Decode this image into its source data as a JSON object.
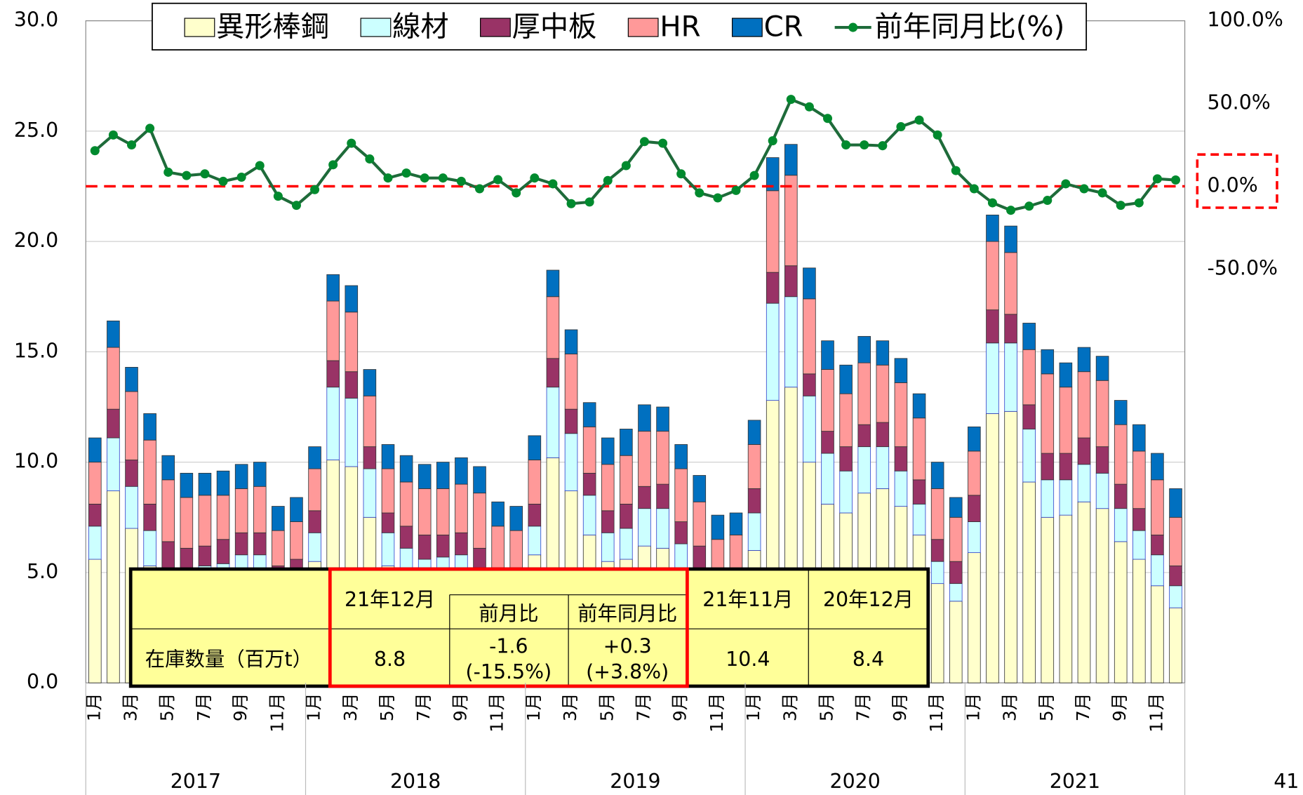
{
  "chart_data": {
    "type": "bar",
    "stacked": true,
    "categories": [
      "1月",
      null,
      "3月",
      null,
      "5月",
      null,
      "7月",
      null,
      "9月",
      null,
      "11月",
      null,
      "1月",
      null,
      "3月",
      null,
      "5月",
      null,
      "7月",
      null,
      "9月",
      null,
      "11月",
      null,
      "1月",
      null,
      "3月",
      null,
      "5月",
      null,
      "7月",
      null,
      "9月",
      null,
      "11月",
      null,
      "1月",
      null,
      "3月",
      null,
      "5月",
      null,
      "7月",
      null,
      "9月",
      null,
      "11月",
      null,
      "1月",
      null,
      "3月",
      null,
      "5月",
      null,
      "7月",
      null,
      "9月",
      null,
      "11月",
      null
    ],
    "years": [
      "2017",
      "2018",
      "2019",
      "2020",
      "2021"
    ],
    "ylim": [
      0,
      30
    ],
    "yticks": [
      {
        "value": 0,
        "label": "0.0"
      },
      {
        "value": 5,
        "label": "5.0"
      },
      {
        "value": 10,
        "label": "10.0"
      },
      {
        "value": 15,
        "label": "15.0"
      },
      {
        "value": 20,
        "label": "20.0"
      },
      {
        "value": 25,
        "label": "25.0"
      },
      {
        "value": 30,
        "label": "30.0"
      }
    ],
    "y2lim": [
      -300,
      100
    ],
    "y2ticks": [
      {
        "value": 100,
        "label": "100.0%"
      },
      {
        "value": 50,
        "label": "50.0%"
      },
      {
        "value": 0,
        "label": "0.0%"
      },
      {
        "value": -50,
        "label": "-50.0%"
      }
    ],
    "grid": true,
    "reference_line_y2": 0,
    "reference_line_color": "#ff0000",
    "series": [
      {
        "name": "異形棒鋼",
        "color": "#ffffcc",
        "values": [
          5.6,
          8.7,
          7.0,
          5.3,
          3.9,
          3.8,
          4.0,
          4.1,
          4.5,
          4.5,
          3.3,
          3.2,
          5.5,
          10.1,
          9.8,
          7.5,
          5.3,
          5.0,
          4.3,
          4.4,
          4.5,
          3.8,
          2.8,
          3.0,
          5.8,
          10.2,
          8.7,
          6.7,
          5.5,
          5.6,
          6.2,
          6.1,
          4.9,
          3.8,
          2.8,
          2.9,
          6.0,
          12.8,
          13.4,
          10.0,
          8.1,
          7.7,
          8.6,
          8.8,
          8.0,
          6.7,
          4.5,
          3.7,
          5.9,
          12.2,
          12.3,
          9.1,
          7.5,
          7.6,
          8.2,
          7.9,
          6.4,
          5.6,
          4.4,
          3.4
        ]
      },
      {
        "name": "線材",
        "color": "#ccffff",
        "values": [
          1.5,
          2.4,
          1.9,
          1.6,
          1.3,
          1.3,
          1.3,
          1.3,
          1.3,
          1.3,
          1.2,
          1.3,
          1.3,
          3.3,
          3.1,
          2.2,
          1.5,
          1.1,
          1.3,
          1.3,
          1.3,
          1.3,
          1.2,
          1.2,
          1.3,
          3.2,
          2.6,
          1.8,
          1.3,
          1.4,
          1.7,
          1.8,
          1.4,
          1.3,
          1.2,
          1.2,
          1.7,
          4.4,
          4.1,
          3.0,
          2.3,
          1.9,
          2.1,
          1.9,
          1.6,
          1.4,
          1.0,
          0.8,
          1.4,
          3.2,
          3.1,
          2.4,
          1.7,
          1.6,
          1.7,
          1.6,
          1.5,
          1.3,
          1.4,
          1.0
        ]
      },
      {
        "name": "厚中板",
        "color": "#993366",
        "values": [
          1.0,
          1.3,
          1.2,
          1.2,
          1.2,
          1.0,
          0.9,
          1.1,
          1.0,
          1.0,
          0.8,
          1.1,
          1.0,
          1.2,
          1.2,
          1.0,
          0.9,
          1.0,
          1.1,
          1.0,
          1.0,
          1.0,
          1.0,
          1.0,
          1.0,
          1.3,
          1.1,
          1.0,
          1.0,
          1.1,
          1.0,
          1.1,
          1.0,
          1.1,
          1.0,
          1.0,
          1.1,
          1.4,
          1.4,
          1.0,
          1.0,
          1.1,
          1.0,
          1.1,
          1.1,
          1.1,
          1.0,
          1.0,
          1.2,
          1.5,
          1.3,
          1.1,
          1.2,
          1.2,
          1.2,
          1.2,
          1.1,
          1.0,
          0.9,
          0.9
        ]
      },
      {
        "name": "HR",
        "color": "#ff9999",
        "values": [
          1.9,
          2.8,
          3.1,
          2.9,
          2.8,
          2.3,
          2.3,
          2.0,
          2.0,
          2.1,
          1.6,
          1.7,
          1.9,
          2.7,
          2.7,
          2.3,
          2.0,
          2.0,
          2.1,
          2.1,
          2.2,
          2.5,
          2.1,
          1.7,
          2.0,
          2.8,
          2.5,
          2.1,
          2.1,
          2.2,
          2.5,
          2.4,
          2.4,
          2.0,
          1.5,
          1.6,
          2.0,
          3.7,
          4.1,
          3.4,
          2.8,
          2.4,
          2.8,
          2.6,
          2.9,
          2.8,
          2.3,
          2.0,
          2.0,
          3.1,
          2.8,
          2.5,
          3.6,
          3.0,
          3.0,
          3.0,
          2.7,
          2.6,
          2.5,
          2.2
        ]
      },
      {
        "name": "CR",
        "color": "#0070c0",
        "values": [
          1.1,
          1.2,
          1.1,
          1.2,
          1.1,
          1.1,
          1.0,
          1.1,
          1.1,
          1.1,
          1.1,
          1.1,
          1.0,
          1.2,
          1.2,
          1.2,
          1.1,
          1.2,
          1.1,
          1.2,
          1.2,
          1.2,
          1.1,
          1.1,
          1.1,
          1.2,
          1.1,
          1.1,
          1.2,
          1.2,
          1.2,
          1.1,
          1.1,
          1.2,
          1.1,
          1.0,
          1.1,
          1.5,
          1.4,
          1.4,
          1.3,
          1.3,
          1.2,
          1.1,
          1.1,
          1.1,
          1.2,
          0.9,
          1.1,
          1.2,
          1.2,
          1.2,
          1.1,
          1.1,
          1.1,
          1.1,
          1.1,
          1.2,
          1.2,
          1.3
        ]
      },
      {
        "name": "前年同月比(%)",
        "color": "#1e6b3a",
        "marker_color": "#008a2e",
        "type": "line",
        "axis": "y2",
        "values": [
          21.5,
          31,
          25,
          35,
          8.5,
          6.5,
          7.5,
          3,
          5.5,
          12.5,
          -6,
          -11.5,
          -2,
          13,
          26,
          16.5,
          5,
          8,
          5,
          5,
          3,
          -1.5,
          4,
          -4,
          5,
          1.5,
          -10.5,
          -9.5,
          3.5,
          12.5,
          27,
          26,
          7.5,
          -4,
          -7,
          -2.5,
          6.5,
          27.5,
          52.5,
          48,
          41,
          25,
          25,
          24.5,
          36,
          40,
          31,
          9.5,
          -1.5,
          -10,
          -14.5,
          -12,
          -8.5,
          1.5,
          -1.5,
          -4,
          -11.5,
          -10,
          4.5,
          3.8
        ]
      }
    ]
  },
  "table": {
    "row_label": "在庫数量（百万t）",
    "header": [
      "21年12月",
      "前月比",
      "前年同月比",
      "21年11月",
      "20年12月"
    ],
    "values": [
      "8.8",
      [
        "-1.6",
        "(-15.5%)"
      ],
      [
        "+0.3",
        "(+3.8%)"
      ],
      "10.4",
      "8.4"
    ]
  },
  "page_number": "41"
}
